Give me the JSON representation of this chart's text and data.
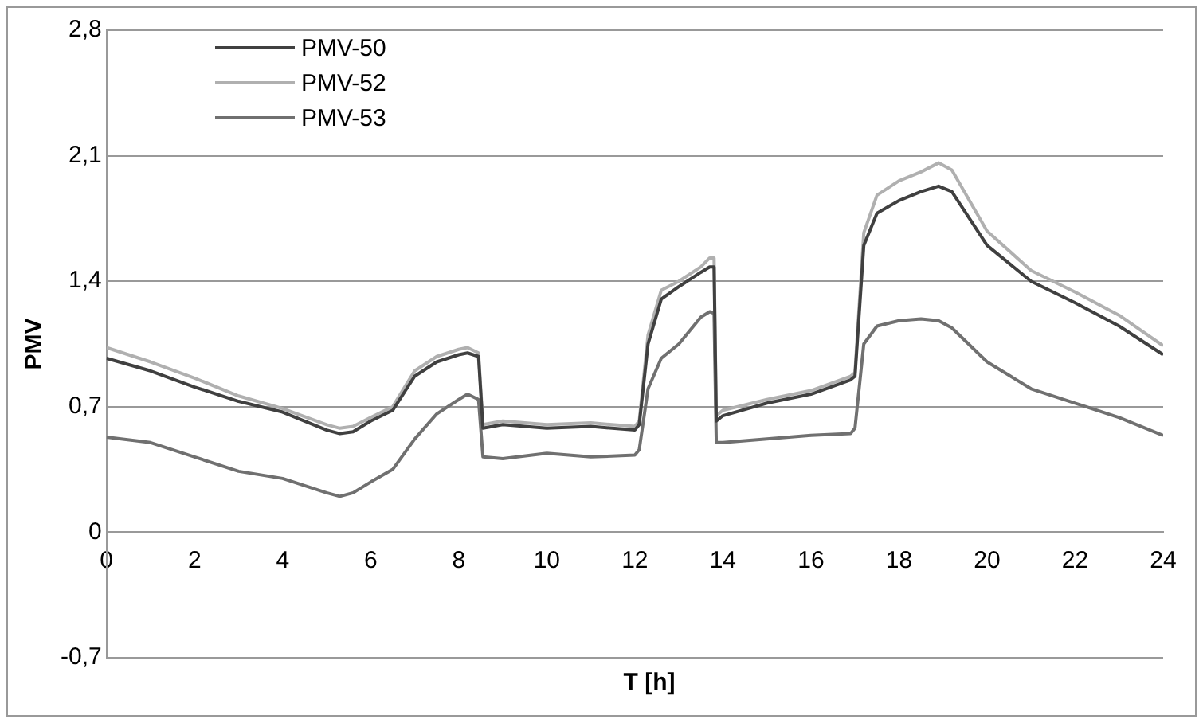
{
  "chart_data": {
    "type": "line",
    "xlabel": "T [h]",
    "ylabel": "PMV",
    "x": [
      0,
      1,
      2,
      3,
      4,
      5,
      5.3,
      5.6,
      6,
      6.5,
      7,
      7.5,
      8,
      8.2,
      8.45,
      8.55,
      9,
      10,
      11,
      12,
      12.1,
      12.3,
      12.6,
      13,
      13.5,
      13.7,
      13.8,
      13.85,
      14,
      15,
      16,
      16.9,
      17,
      17.2,
      17.5,
      18,
      18.5,
      18.9,
      19.2,
      20,
      21,
      22,
      23,
      24
    ],
    "series": [
      {
        "name": "PMV-50",
        "color": "#404040",
        "values": [
          0.97,
          0.9,
          0.81,
          0.73,
          0.67,
          0.57,
          0.55,
          0.56,
          0.62,
          0.68,
          0.87,
          0.95,
          0.99,
          1.0,
          0.98,
          0.58,
          0.6,
          0.58,
          0.59,
          0.57,
          0.6,
          1.05,
          1.3,
          1.37,
          1.45,
          1.48,
          1.48,
          0.62,
          0.65,
          0.72,
          0.77,
          0.85,
          0.87,
          1.6,
          1.78,
          1.85,
          1.9,
          1.93,
          1.9,
          1.6,
          1.4,
          1.28,
          1.15,
          0.99
        ]
      },
      {
        "name": "PMV-52",
        "color": "#b0b0b0",
        "values": [
          1.03,
          0.95,
          0.86,
          0.76,
          0.69,
          0.6,
          0.58,
          0.59,
          0.64,
          0.7,
          0.9,
          0.98,
          1.02,
          1.03,
          1.0,
          0.6,
          0.62,
          0.6,
          0.61,
          0.59,
          0.62,
          1.1,
          1.35,
          1.4,
          1.48,
          1.53,
          1.53,
          0.65,
          0.68,
          0.74,
          0.79,
          0.87,
          0.89,
          1.67,
          1.88,
          1.96,
          2.01,
          2.06,
          2.02,
          1.68,
          1.46,
          1.34,
          1.21,
          1.04
        ]
      },
      {
        "name": "PMV-53",
        "color": "#707070",
        "values": [
          0.53,
          0.5,
          0.42,
          0.34,
          0.3,
          0.22,
          0.2,
          0.22,
          0.28,
          0.35,
          0.52,
          0.66,
          0.74,
          0.77,
          0.74,
          0.42,
          0.41,
          0.44,
          0.42,
          0.43,
          0.46,
          0.8,
          0.97,
          1.05,
          1.2,
          1.23,
          1.22,
          0.5,
          0.5,
          0.52,
          0.54,
          0.55,
          0.58,
          1.05,
          1.15,
          1.18,
          1.19,
          1.18,
          1.14,
          0.95,
          0.8,
          0.72,
          0.64,
          0.54
        ]
      }
    ],
    "xlim": [
      0,
      24
    ],
    "xticks": [
      0,
      2,
      4,
      6,
      8,
      10,
      12,
      14,
      16,
      18,
      20,
      22,
      24
    ],
    "ylim": [
      -0.7,
      2.8
    ],
    "yticks": [
      {
        "value": -0.7,
        "label": "-0,7"
      },
      0,
      {
        "value": 0.7,
        "label": "0,7"
      },
      {
        "value": 1.4,
        "label": "1,4"
      },
      {
        "value": 2.1,
        "label": "2,1"
      },
      {
        "value": 2.8,
        "label": "2,8"
      }
    ],
    "grid": "y",
    "legend": "top left",
    "marker": "none",
    "line_style": "solid"
  }
}
